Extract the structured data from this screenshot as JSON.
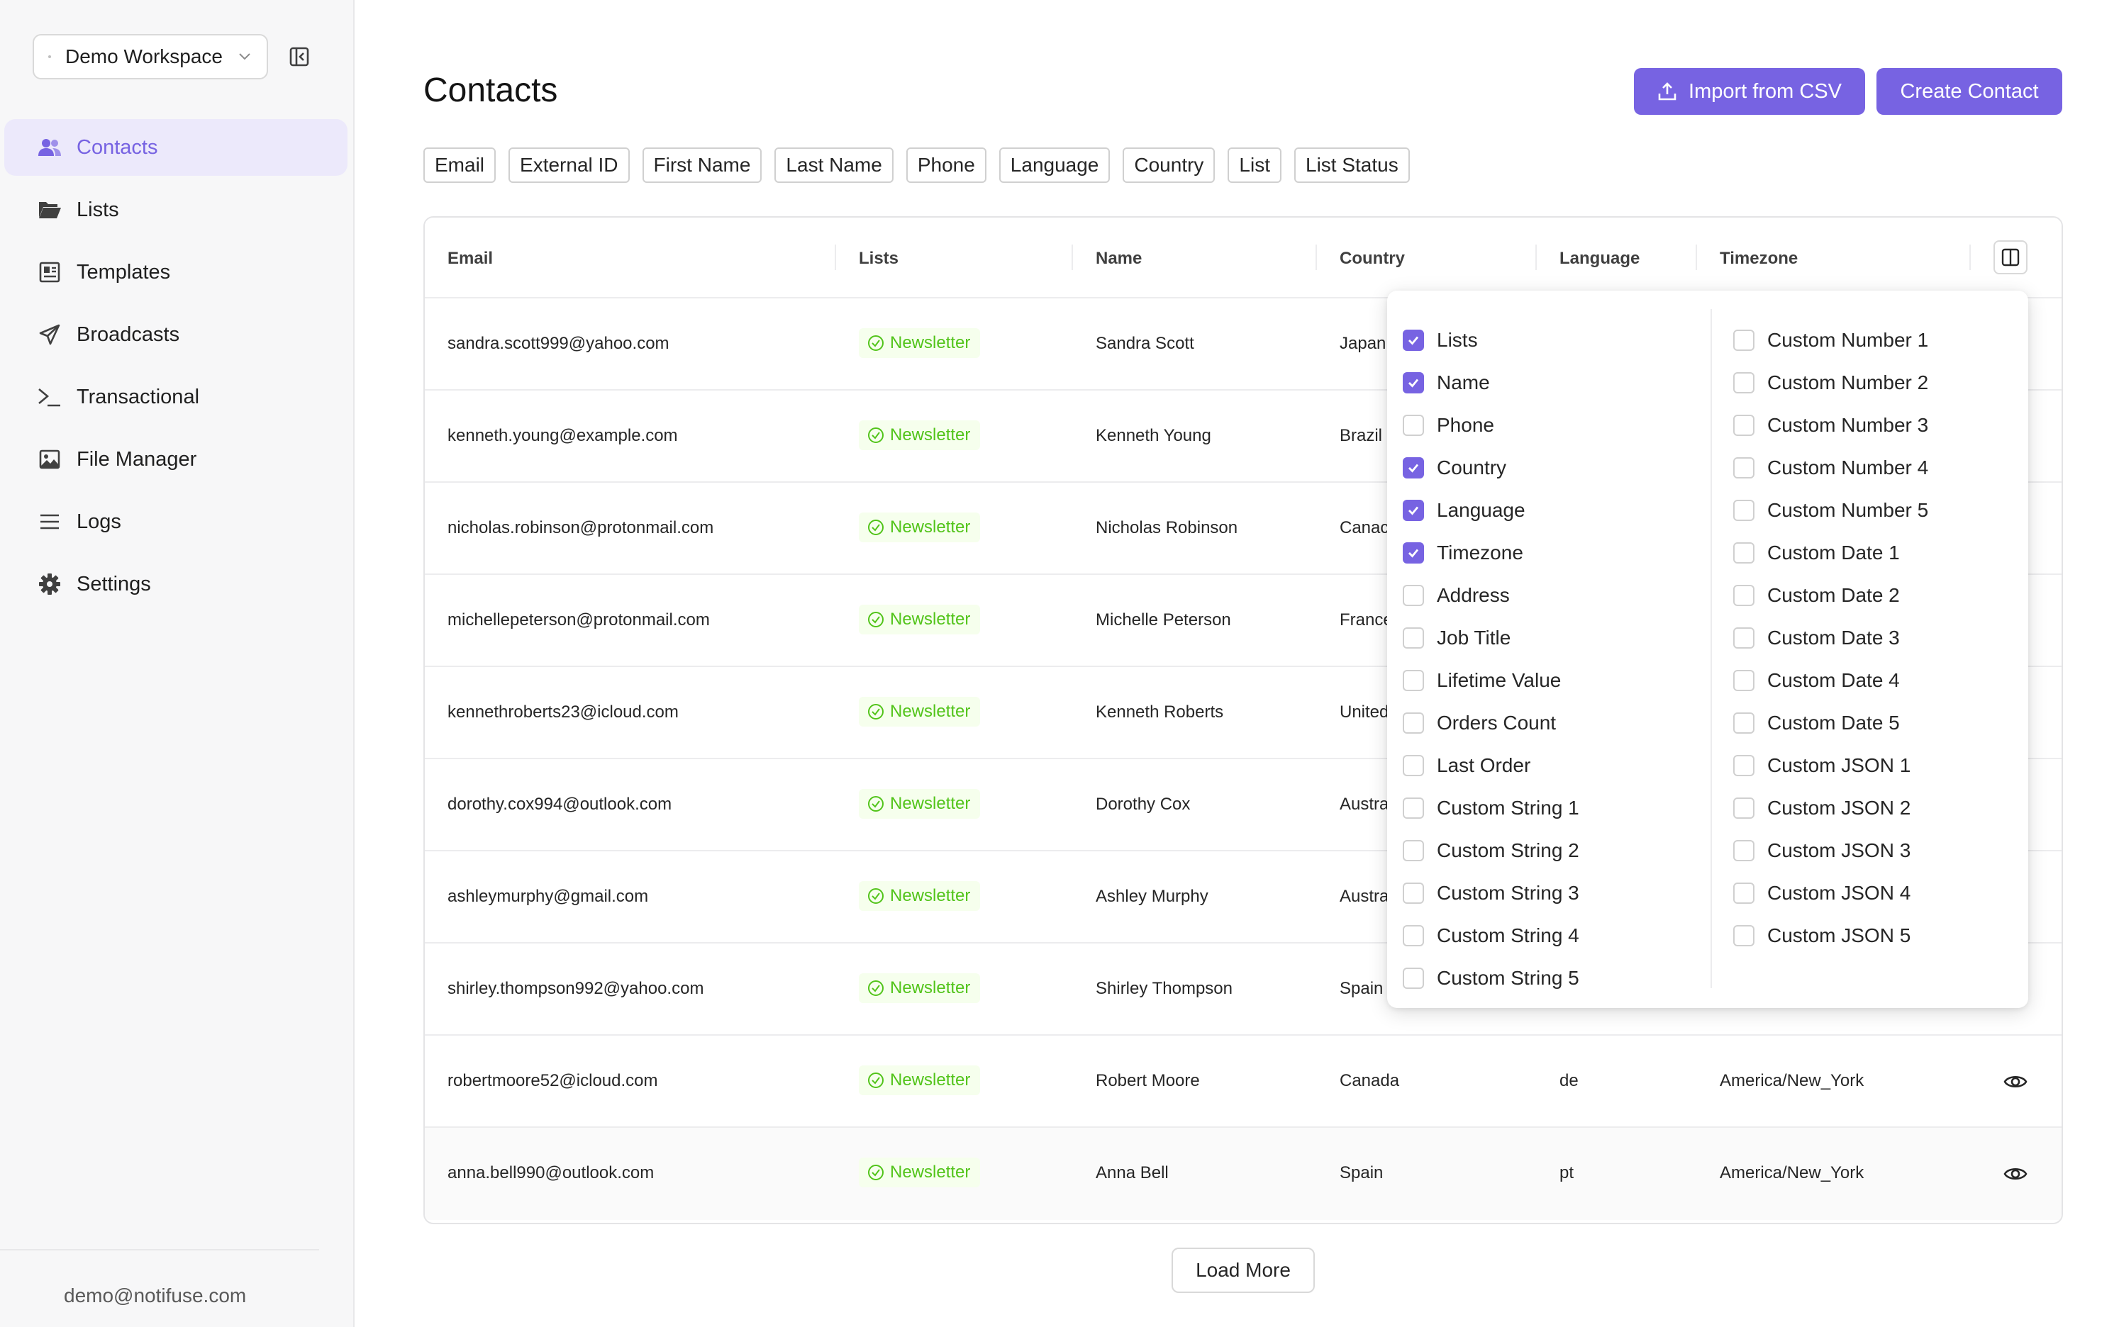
{
  "workspace": {
    "name": "Demo Workspace"
  },
  "nav": [
    {
      "label": "Contacts",
      "icon": "users-icon",
      "active": true
    },
    {
      "label": "Lists",
      "icon": "folder-open-icon"
    },
    {
      "label": "Templates",
      "icon": "template-icon"
    },
    {
      "label": "Broadcasts",
      "icon": "send-icon"
    },
    {
      "label": "Transactional",
      "icon": "terminal-icon"
    },
    {
      "label": "File Manager",
      "icon": "image-icon"
    },
    {
      "label": "Logs",
      "icon": "list-lines-icon"
    },
    {
      "label": "Settings",
      "icon": "gear-icon"
    }
  ],
  "user": {
    "email": "demo@notifuse.com"
  },
  "page": {
    "title": "Contacts",
    "import_label": "Import from CSV",
    "create_label": "Create Contact",
    "load_more_label": "Load More"
  },
  "filters": [
    "Email",
    "External ID",
    "First Name",
    "Last Name",
    "Phone",
    "Language",
    "Country",
    "List",
    "List Status"
  ],
  "table": {
    "headers": [
      "Email",
      "Lists",
      "Name",
      "Country",
      "Language",
      "Timezone"
    ],
    "rows": [
      {
        "email": "sandra.scott999@yahoo.com",
        "list": "Newsletter",
        "name": "Sandra Scott",
        "country": "Japan"
      },
      {
        "email": "kenneth.young@example.com",
        "list": "Newsletter",
        "name": "Kenneth Young",
        "country": "Brazil"
      },
      {
        "email": "nicholas.robinson@protonmail.com",
        "list": "Newsletter",
        "name": "Nicholas Robinson",
        "country": "Canac"
      },
      {
        "email": "michellepeterson@protonmail.com",
        "list": "Newsletter",
        "name": "Michelle Peterson",
        "country": "France"
      },
      {
        "email": "kennethroberts23@icloud.com",
        "list": "Newsletter",
        "name": "Kenneth Roberts",
        "country": "United"
      },
      {
        "email": "dorothy.cox994@outlook.com",
        "list": "Newsletter",
        "name": "Dorothy Cox",
        "country": "Austra"
      },
      {
        "email": "ashleymurphy@gmail.com",
        "list": "Newsletter",
        "name": "Ashley Murphy",
        "country": "Austra"
      },
      {
        "email": "shirley.thompson992@yahoo.com",
        "list": "Newsletter",
        "name": "Shirley Thompson",
        "country": "Spain"
      },
      {
        "email": "robertmoore52@icloud.com",
        "list": "Newsletter",
        "name": "Robert Moore",
        "country": "Canada",
        "language": "de",
        "timezone": "America/New_York"
      },
      {
        "email": "anna.bell990@outlook.com",
        "list": "Newsletter",
        "name": "Anna Bell",
        "country": "Spain",
        "language": "pt",
        "timezone": "America/New_York"
      }
    ]
  },
  "column_menu": {
    "left": [
      {
        "label": "Lists",
        "checked": true
      },
      {
        "label": "Name",
        "checked": true
      },
      {
        "label": "Phone",
        "checked": false
      },
      {
        "label": "Country",
        "checked": true
      },
      {
        "label": "Language",
        "checked": true
      },
      {
        "label": "Timezone",
        "checked": true
      },
      {
        "label": "Address",
        "checked": false
      },
      {
        "label": "Job Title",
        "checked": false
      },
      {
        "label": "Lifetime Value",
        "checked": false
      },
      {
        "label": "Orders Count",
        "checked": false
      },
      {
        "label": "Last Order",
        "checked": false
      },
      {
        "label": "Custom String 1",
        "checked": false
      },
      {
        "label": "Custom String 2",
        "checked": false
      },
      {
        "label": "Custom String 3",
        "checked": false
      },
      {
        "label": "Custom String 4",
        "checked": false
      },
      {
        "label": "Custom String 5",
        "checked": false
      }
    ],
    "right": [
      {
        "label": "Custom Number 1",
        "checked": false
      },
      {
        "label": "Custom Number 2",
        "checked": false
      },
      {
        "label": "Custom Number 3",
        "checked": false
      },
      {
        "label": "Custom Number 4",
        "checked": false
      },
      {
        "label": "Custom Number 5",
        "checked": false
      },
      {
        "label": "Custom Date 1",
        "checked": false
      },
      {
        "label": "Custom Date 2",
        "checked": false
      },
      {
        "label": "Custom Date 3",
        "checked": false
      },
      {
        "label": "Custom Date 4",
        "checked": false
      },
      {
        "label": "Custom Date 5",
        "checked": false
      },
      {
        "label": "Custom JSON 1",
        "checked": false
      },
      {
        "label": "Custom JSON 2",
        "checked": false
      },
      {
        "label": "Custom JSON 3",
        "checked": false
      },
      {
        "label": "Custom JSON 4",
        "checked": false
      },
      {
        "label": "Custom JSON 5",
        "checked": false
      }
    ]
  },
  "colors": {
    "accent": "#7763e2",
    "accent_bg": "#ece9fb",
    "success": "#52c41a",
    "success_bg": "#f6ffed"
  }
}
